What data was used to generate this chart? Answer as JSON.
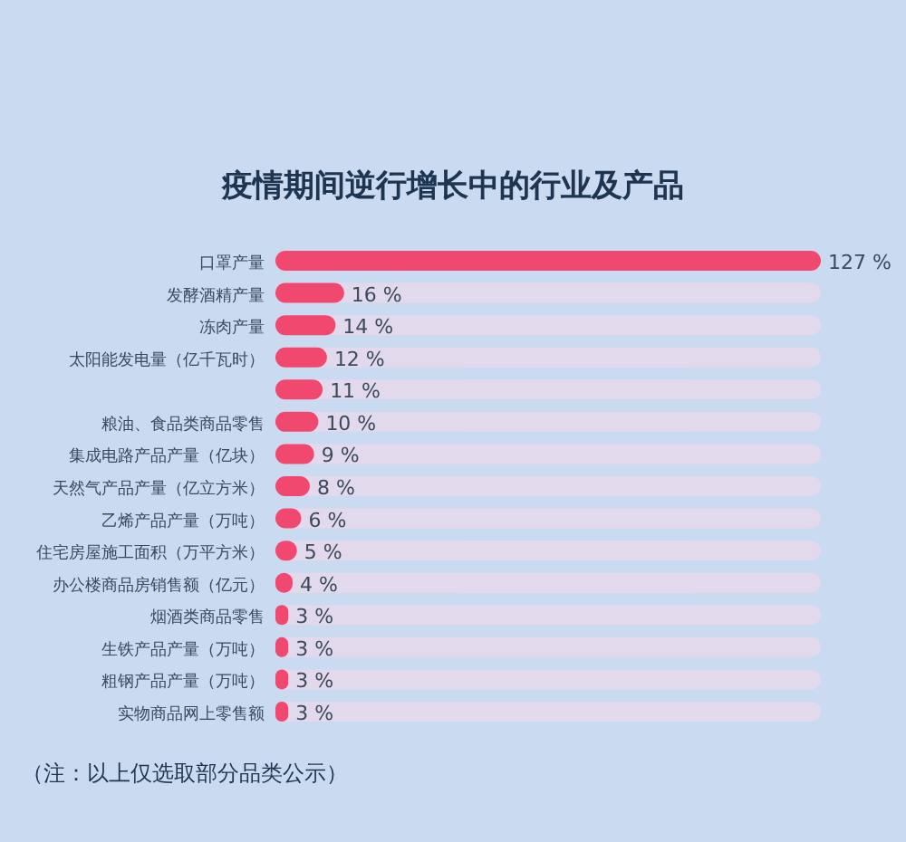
{
  "chart_data": {
    "type": "bar",
    "orientation": "horizontal",
    "relative": false,
    "title": "疫情期间逆行增长中的行业及产品",
    "categories": [
      "口罩产量",
      "发酵酒精产量",
      "冻肉产量",
      "太阳能发电量（亿千瓦时）",
      null,
      "粮油、食品类商品零售",
      "集成电路产品产量（亿块）",
      "天然气产品产量（亿立方米）",
      "乙烯产品产量（万吨）",
      "住宅房屋施工面积（万平方米）",
      "办公楼商品房销售额（亿元）",
      "烟酒类商品零售",
      "生铁产品产量（万吨）",
      "粗钢产品产量（万吨）",
      "实物商品网上零售额"
    ],
    "values": [
      127,
      16,
      14,
      12,
      11,
      10,
      9,
      8,
      6,
      5,
      4,
      3,
      3,
      3,
      3
    ],
    "value_labels": [
      "127 %",
      "16 %",
      "14 %",
      "12 %",
      "11 %",
      "10 %",
      "9 %",
      "8 %",
      "6 %",
      "5 %",
      "4 %",
      "3 %",
      "3 %",
      "3 %",
      "3 %"
    ],
    "color": "#f0486e",
    "annotations": [
      "（注：以上仅选取部分品类公示）"
    ]
  }
}
